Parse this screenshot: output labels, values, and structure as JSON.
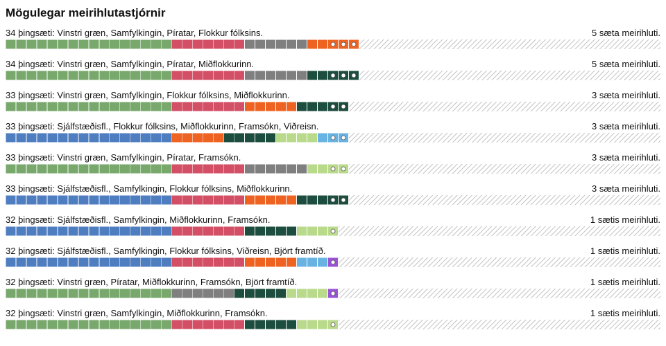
{
  "title": "Mögulegar meirihlutastjórnir",
  "parties": {
    "VG": {
      "name": "Vinstri græn",
      "color": "#78a86c"
    },
    "S": {
      "name": "Samfylkingin",
      "color": "#d24f65"
    },
    "P": {
      "name": "Píratar",
      "color": "#7f7f7f"
    },
    "F": {
      "name": "Flokkur fólksins",
      "color": "#ee6322"
    },
    "M": {
      "name": "Miðflokkurinn",
      "color": "#1d4d3e"
    },
    "D": {
      "name": "Sjálfstæðisfl.",
      "color": "#4f7ec0"
    },
    "B": {
      "name": "Framsókn",
      "color": "#b9d98b"
    },
    "C": {
      "name": "Viðreisn",
      "color": "#68b3e2"
    },
    "A": {
      "name": "Björt framtíð",
      "color": "#9a52d6"
    }
  },
  "chart_data": {
    "type": "bar",
    "total_seats": 63,
    "majority_threshold": 32,
    "rows": [
      {
        "label": "34 þingsæti: Vinstri græn, Samfylkingin, Píratar, Flokkur fólksins.",
        "majority_label": "5 sæta meirihluti.",
        "seats": 34,
        "segments": [
          {
            "party": "VG",
            "seats": 16
          },
          {
            "party": "S",
            "seats": 7
          },
          {
            "party": "P",
            "seats": 6
          },
          {
            "party": "F",
            "seats": 5
          }
        ]
      },
      {
        "label": "34 þingsæti: Vinstri græn, Samfylkingin, Píratar, Miðflokkurinn.",
        "majority_label": "5 sæta meirihluti.",
        "seats": 34,
        "segments": [
          {
            "party": "VG",
            "seats": 16
          },
          {
            "party": "S",
            "seats": 7
          },
          {
            "party": "P",
            "seats": 6
          },
          {
            "party": "M",
            "seats": 5
          }
        ]
      },
      {
        "label": "33 þingsæti: Vinstri græn, Samfylkingin, Flokkur fólksins, Miðflokkurinn.",
        "majority_label": "3 sæta meirihluti.",
        "seats": 33,
        "segments": [
          {
            "party": "VG",
            "seats": 16
          },
          {
            "party": "S",
            "seats": 7
          },
          {
            "party": "F",
            "seats": 5
          },
          {
            "party": "M",
            "seats": 5
          }
        ]
      },
      {
        "label": "33 þingsæti: Sjálfstæðisfl., Flokkur fólksins, Miðflokkurinn, Framsókn, Viðreisn.",
        "majority_label": "3 sæta meirihluti.",
        "seats": 33,
        "segments": [
          {
            "party": "D",
            "seats": 16
          },
          {
            "party": "F",
            "seats": 5
          },
          {
            "party": "M",
            "seats": 5
          },
          {
            "party": "B",
            "seats": 4
          },
          {
            "party": "C",
            "seats": 3
          }
        ]
      },
      {
        "label": "33 þingsæti: Vinstri græn, Samfylkingin, Píratar, Framsókn.",
        "majority_label": "3 sæta meirihluti.",
        "seats": 33,
        "segments": [
          {
            "party": "VG",
            "seats": 16
          },
          {
            "party": "S",
            "seats": 7
          },
          {
            "party": "P",
            "seats": 6
          },
          {
            "party": "B",
            "seats": 4
          }
        ]
      },
      {
        "label": "33 þingsæti: Sjálfstæðisfl., Samfylkingin, Flokkur fólksins, Miðflokkurinn.",
        "majority_label": "3 sæta meirihluti.",
        "seats": 33,
        "segments": [
          {
            "party": "D",
            "seats": 16
          },
          {
            "party": "S",
            "seats": 7
          },
          {
            "party": "F",
            "seats": 5
          },
          {
            "party": "M",
            "seats": 5
          }
        ]
      },
      {
        "label": "32 þingsæti: Sjálfstæðisfl., Samfylkingin, Miðflokkurinn, Framsókn.",
        "majority_label": "1 sætis meirihluti.",
        "seats": 32,
        "segments": [
          {
            "party": "D",
            "seats": 16
          },
          {
            "party": "S",
            "seats": 7
          },
          {
            "party": "M",
            "seats": 5
          },
          {
            "party": "B",
            "seats": 4
          }
        ]
      },
      {
        "label": "32 þingsæti: Sjálfstæðisfl., Samfylkingin, Flokkur fólksins, Viðreisn, Björt framtíð.",
        "majority_label": "1 sætis meirihluti.",
        "seats": 32,
        "segments": [
          {
            "party": "D",
            "seats": 16
          },
          {
            "party": "S",
            "seats": 7
          },
          {
            "party": "F",
            "seats": 5
          },
          {
            "party": "C",
            "seats": 3
          },
          {
            "party": "A",
            "seats": 1
          }
        ]
      },
      {
        "label": "32 þingsæti: Vinstri græn, Píratar, Miðflokkurinn, Framsókn, Björt framtíð.",
        "majority_label": "1 sætis meirihluti.",
        "seats": 32,
        "segments": [
          {
            "party": "VG",
            "seats": 16
          },
          {
            "party": "P",
            "seats": 6
          },
          {
            "party": "M",
            "seats": 5
          },
          {
            "party": "B",
            "seats": 4
          },
          {
            "party": "A",
            "seats": 1
          }
        ]
      },
      {
        "label": "32 þingsæti: Vinstri græn, Samfylkingin, Miðflokkurinn, Framsókn.",
        "majority_label": "1 sætis meirihluti.",
        "seats": 32,
        "segments": [
          {
            "party": "VG",
            "seats": 16
          },
          {
            "party": "S",
            "seats": 7
          },
          {
            "party": "M",
            "seats": 5
          },
          {
            "party": "B",
            "seats": 4
          }
        ]
      }
    ]
  }
}
